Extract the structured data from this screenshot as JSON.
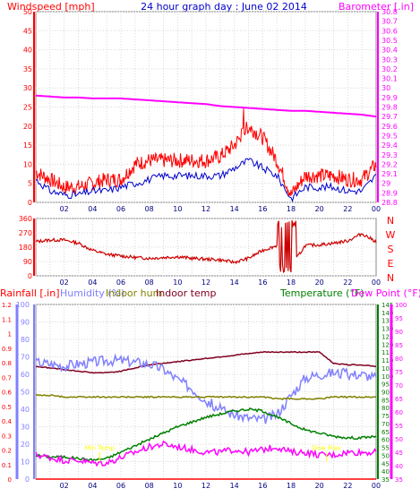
{
  "chart_data": [
    {
      "id": "wind-baro",
      "type": "line",
      "title": "24 hour graph day : June 02 2014",
      "left_label": "Windspeed [mph]",
      "right_label": "Barometer [.in]",
      "x_ticks": [
        "02",
        "04",
        "06",
        "08",
        "10",
        "12",
        "14",
        "16",
        "18",
        "20",
        "22",
        "00"
      ],
      "left_ticks": [
        "0",
        "5",
        "10",
        "15",
        "20",
        "25",
        "30",
        "35",
        "40",
        "45",
        "50"
      ],
      "left_ylim": [
        0,
        50
      ],
      "right_ticks": [
        "28.8",
        "28.9",
        "29",
        "29.1",
        "29.2",
        "29.3",
        "29.4",
        "29.5",
        "29.6",
        "29.7",
        "29.8",
        "29.9",
        "30",
        "30.1",
        "30.2",
        "30.3",
        "30.4",
        "30.5",
        "30.6",
        "30.7",
        "30.8"
      ],
      "right_ylim": [
        28.8,
        30.8
      ],
      "colors": {
        "gust": "#ff0000",
        "avg": "#0000cc",
        "barometer": "#ff00ff",
        "left_axis": "#ff0000",
        "right_axis": "#ff00ff",
        "title": "#0000cc"
      },
      "x": [
        0,
        1,
        2,
        3,
        4,
        5,
        6,
        7,
        8,
        9,
        10,
        11,
        12,
        13,
        14,
        15,
        16,
        17,
        18,
        19,
        20,
        21,
        22,
        23,
        24
      ],
      "series": [
        {
          "key": "gust",
          "values": [
            8,
            6,
            4,
            4,
            5,
            6,
            6,
            10,
            11,
            11,
            11,
            11,
            11,
            12,
            15,
            20,
            17,
            11,
            2,
            7,
            7,
            7,
            6,
            6,
            10
          ]
        },
        {
          "key": "avg",
          "values": [
            6,
            3,
            2,
            2,
            3,
            3,
            4,
            5,
            6,
            7,
            7,
            7,
            7,
            7,
            9,
            11,
            9,
            7,
            1,
            4,
            4,
            4,
            3,
            3,
            7
          ]
        },
        {
          "key": "barometer",
          "values": [
            29.92,
            29.91,
            29.9,
            29.9,
            29.89,
            29.89,
            29.89,
            29.88,
            29.87,
            29.86,
            29.85,
            29.84,
            29.83,
            29.81,
            29.8,
            29.79,
            29.78,
            29.77,
            29.76,
            29.76,
            29.75,
            29.74,
            29.73,
            29.72,
            29.7
          ]
        }
      ]
    },
    {
      "id": "wind-dir",
      "type": "line",
      "left_ticks": [
        "0",
        "90",
        "180",
        "270",
        "360"
      ],
      "left_ylim": [
        0,
        360
      ],
      "right_labels": [
        "N",
        "W",
        "S",
        "E",
        "N"
      ],
      "x_ticks": [
        "02",
        "04",
        "06",
        "08",
        "10",
        "12",
        "14",
        "16",
        "18",
        "20",
        "22",
        "00"
      ],
      "colors": {
        "direction": "#cc0000",
        "left_axis": "#ff0000",
        "right_axis": "#ff0000"
      },
      "x": [
        0,
        1,
        2,
        3,
        4,
        5,
        6,
        7,
        8,
        9,
        10,
        11,
        12,
        13,
        14,
        15,
        16,
        17,
        18,
        19,
        20,
        21,
        22,
        23,
        24
      ],
      "series": [
        {
          "key": "direction",
          "values": [
            215,
            225,
            225,
            205,
            160,
            135,
            125,
            115,
            110,
            115,
            120,
            110,
            105,
            100,
            85,
            110,
            160,
            190,
            60,
            190,
            195,
            205,
            220,
            265,
            215
          ]
        }
      ]
    },
    {
      "id": "temp-hum",
      "type": "line",
      "labels": {
        "rain": "Rainfall [.in]",
        "humidity": "Humidity (%)",
        "indoor_hum": "Indoor hum",
        "indoor_temp": "Indoor temp",
        "temperature": "Temperature (°F)",
        "dew_point": "Dew Point (°F)"
      },
      "rain_ticks": [
        "0",
        "0.1",
        "0.2",
        "0.3",
        "0.4",
        "0.5",
        "0.6",
        "0.7",
        "0.8",
        "0.9",
        "1",
        "1.1",
        "1.2"
      ],
      "rain_ylim": [
        0,
        1.2
      ],
      "humidity_ticks": [
        "0",
        "10",
        "20",
        "30",
        "40",
        "50",
        "60",
        "70",
        "80",
        "90",
        "100"
      ],
      "humidity_ylim": [
        0,
        100
      ],
      "temperature_ticks": [
        "35",
        "40",
        "45",
        "50",
        "55",
        "60",
        "65",
        "70",
        "75",
        "80",
        "85",
        "90",
        "95",
        "100",
        "105",
        "110",
        "115",
        "120",
        "125",
        "130",
        "135",
        "140",
        "145"
      ],
      "temperature_ylim": [
        35,
        145
      ],
      "dew_ticks": [
        "35",
        "40",
        "45",
        "50",
        "55",
        "60",
        "65",
        "70",
        "75",
        "80",
        "85",
        "90",
        "95",
        "100"
      ],
      "dew_ylim": [
        35,
        100
      ],
      "x_ticks": [
        "02",
        "04",
        "06",
        "08",
        "10",
        "12",
        "14",
        "16",
        "18",
        "20",
        "22",
        "00"
      ],
      "annotations": [
        {
          "text": "Min Temp",
          "x": 4.5
        },
        {
          "text": "Dew Max",
          "x": 20.5
        }
      ],
      "colors": {
        "rain": "#ff0000",
        "humidity": "#8080ff",
        "indoor_hum": "#808000",
        "indoor_temp": "#800020",
        "temperature": "#008000",
        "dew_point": "#ff00ff",
        "annotation": "#ffff00"
      },
      "x": [
        0,
        1,
        2,
        3,
        4,
        5,
        6,
        7,
        8,
        9,
        10,
        11,
        12,
        13,
        14,
        15,
        16,
        17,
        18,
        19,
        20,
        21,
        22,
        23,
        24
      ],
      "series": [
        {
          "key": "indoor_temp",
          "axis": "temperature",
          "values": [
            106,
            105,
            104,
            103,
            102,
            102,
            103,
            105,
            107,
            108,
            109,
            110,
            111,
            112,
            113,
            114,
            115,
            115,
            115,
            115,
            115,
            108,
            107,
            107,
            106
          ]
        },
        {
          "key": "humidity",
          "axis": "humidity",
          "values": [
            67,
            66,
            65,
            66,
            67,
            68,
            68,
            67,
            66,
            63,
            57,
            52,
            45,
            40,
            37,
            35,
            34,
            37,
            48,
            58,
            60,
            61,
            60,
            60,
            58
          ]
        },
        {
          "key": "indoor_hum",
          "axis": "humidity",
          "values": [
            48,
            48,
            47,
            47,
            47,
            47,
            47,
            47,
            47,
            47,
            47,
            47,
            47,
            47,
            47,
            47,
            47,
            46,
            46,
            46,
            46,
            47,
            47,
            47,
            47
          ]
        },
        {
          "key": "temperature",
          "axis": "temperature",
          "values": [
            50,
            49,
            49,
            48,
            47,
            48,
            52,
            56,
            60,
            64,
            68,
            71,
            74,
            76,
            78,
            79,
            78,
            74,
            70,
            66,
            64,
            62,
            61,
            61,
            62
          ]
        },
        {
          "key": "dew_point",
          "axis": "dew",
          "values": [
            44,
            43,
            42,
            42,
            41,
            41,
            43,
            45,
            47,
            48,
            47,
            46,
            45,
            45,
            46,
            45,
            46,
            47,
            45,
            45,
            44,
            44,
            45,
            45,
            45
          ]
        },
        {
          "key": "rain",
          "axis": "rain",
          "values": [
            0,
            0,
            0,
            0,
            0,
            0,
            0,
            0,
            0,
            0,
            0,
            0,
            0,
            0,
            0,
            0,
            0,
            0,
            0,
            0,
            0,
            0,
            0,
            0,
            0
          ]
        }
      ]
    }
  ]
}
